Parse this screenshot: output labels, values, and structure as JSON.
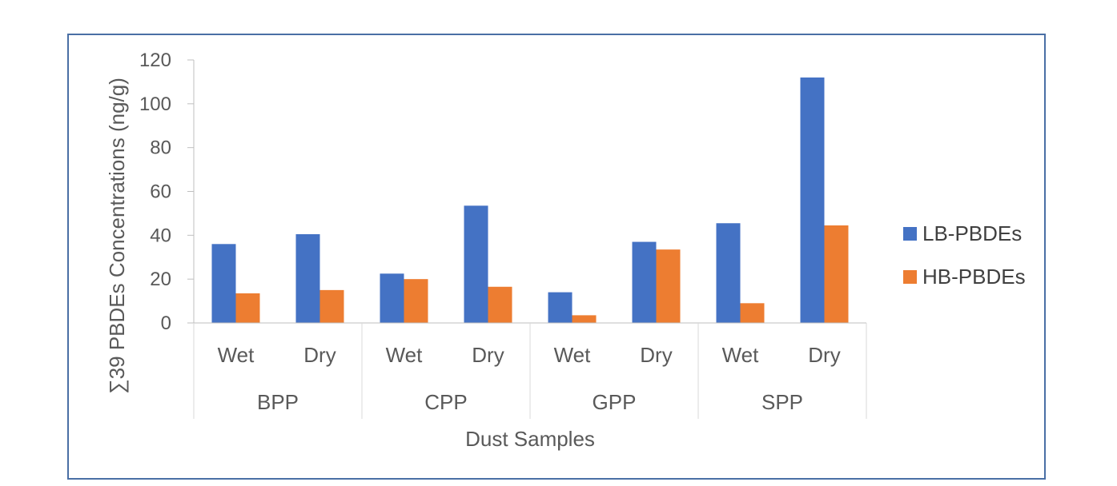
{
  "chart_data": {
    "type": "bar",
    "xlabel": "Dust Samples",
    "ylabel": "∑39 PBDEs Concentrations (ng/g)",
    "ylim": [
      0,
      120
    ],
    "yticks": [
      0,
      20,
      40,
      60,
      80,
      100,
      120
    ],
    "groups": [
      "BPP",
      "CPP",
      "GPP",
      "SPP"
    ],
    "subcategories": [
      "Wet",
      "Dry"
    ],
    "categories": [
      "Wet",
      "Dry",
      "Wet",
      "Dry",
      "Wet",
      "Dry",
      "Wet",
      "Dry"
    ],
    "series": [
      {
        "name": "LB-PBDEs",
        "color": "#4472c4",
        "values": [
          36,
          40.5,
          22.5,
          53.5,
          14,
          37,
          45.5,
          112
        ]
      },
      {
        "name": "HB-PBDEs",
        "color": "#ed7d31",
        "values": [
          13.5,
          15,
          20,
          16.5,
          3.5,
          33.5,
          9,
          44.5
        ]
      }
    ],
    "legend": "right",
    "grid": false
  }
}
